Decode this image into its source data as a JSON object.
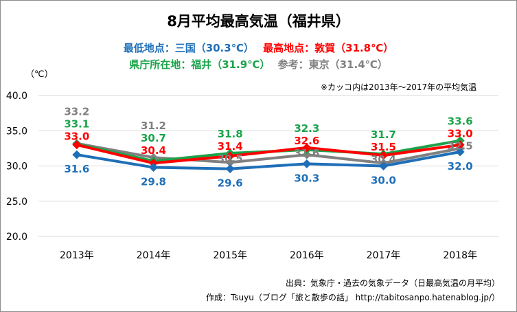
{
  "chart_data": {
    "type": "line",
    "title": "8月平均最高気温（福井県）",
    "subtitle_lines": [
      [
        {
          "text": "最低地点：三国（30.3℃）",
          "color": "#1f6fb8"
        },
        {
          "text": "最高地点：敦賀（31.8℃）",
          "color": "#ff0000"
        }
      ],
      [
        {
          "text": "県庁所在地：福井（31.9℃）",
          "color": "#1aa34a"
        },
        {
          "text": "参考：",
          "color": "#808080"
        },
        {
          "text": "東京（31.4℃）",
          "color": "#808080"
        }
      ]
    ],
    "ylabel": "（℃）",
    "note": "※カッコ内は2013年～2017年の平均気温",
    "categories": [
      "2013年",
      "2014年",
      "2015年",
      "2016年",
      "2017年",
      "2018年"
    ],
    "ylim": [
      20.0,
      40.0
    ],
    "yticks": [
      "20.0",
      "25.0",
      "30.0",
      "35.0",
      "40.0"
    ],
    "grid": true,
    "series": [
      {
        "values": [
          33.2,
          31.2,
          30.5,
          31.6,
          30.4,
          32.5
        ],
        "color": "#808080"
      },
      {
        "values": [
          33.1,
          30.7,
          31.8,
          32.3,
          31.7,
          33.6
        ],
        "color": "#1aa34a"
      },
      {
        "values": [
          33.0,
          30.4,
          31.4,
          32.6,
          31.5,
          33.0
        ],
        "color": "#ff0000"
      },
      {
        "values": [
          31.6,
          29.8,
          29.6,
          30.3,
          30.0,
          32.0
        ],
        "color": "#1f6fb8"
      }
    ]
  },
  "footer": {
    "source": "出典：気象庁・過去の気象データ（日最高気温の月平均）",
    "author": "作成：Tsuyu（ブログ「旅と散歩の話」 http://tabitosanpo.hatenablog.jp/）"
  }
}
